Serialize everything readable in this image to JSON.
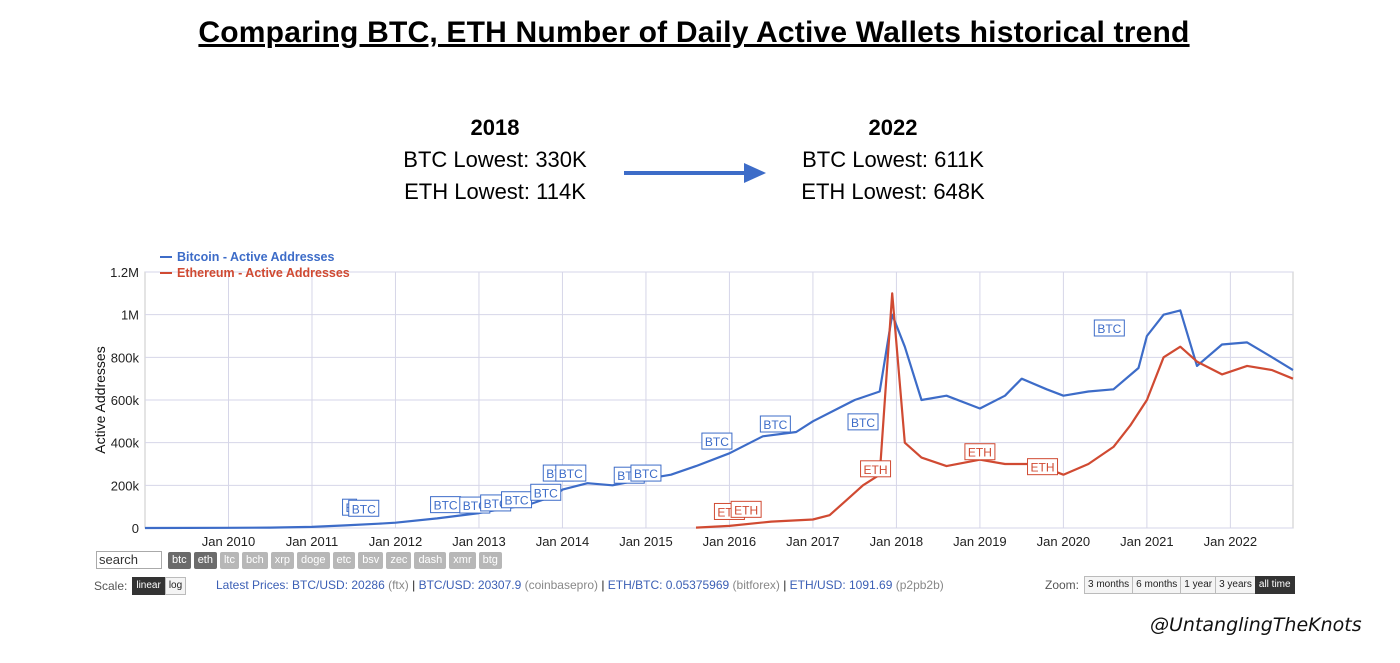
{
  "headline": "Comparing BTC, ETH Number of Daily Active Wallets historical trend",
  "comparison": {
    "left": {
      "year": "2018",
      "btc": "BTC Lowest: 330K",
      "eth": "ETH Lowest: 114K"
    },
    "right": {
      "year": "2022",
      "btc": "BTC Lowest: 611K",
      "eth": "ETH Lowest: 648K"
    }
  },
  "chart_data": {
    "type": "line",
    "ylabel": "Active Addresses",
    "ylim": [
      0,
      1200000
    ],
    "yticks": [
      {
        "value": 0,
        "label": "0"
      },
      {
        "value": 200000,
        "label": "200k"
      },
      {
        "value": 400000,
        "label": "400k"
      },
      {
        "value": 600000,
        "label": "600k"
      },
      {
        "value": 800000,
        "label": "800k"
      },
      {
        "value": 1000000,
        "label": "1M"
      },
      {
        "value": 1200000,
        "label": "1.2M"
      }
    ],
    "xlim": [
      2009.0,
      2022.75
    ],
    "xticks": [
      {
        "value": 2010,
        "label": "Jan 2010"
      },
      {
        "value": 2011,
        "label": "Jan 2011"
      },
      {
        "value": 2012,
        "label": "Jan 2012"
      },
      {
        "value": 2013,
        "label": "Jan 2013"
      },
      {
        "value": 2014,
        "label": "Jan 2014"
      },
      {
        "value": 2015,
        "label": "Jan 2015"
      },
      {
        "value": 2016,
        "label": "Jan 2016"
      },
      {
        "value": 2017,
        "label": "Jan 2017"
      },
      {
        "value": 2018,
        "label": "Jan 2018"
      },
      {
        "value": 2019,
        "label": "Jan 2019"
      },
      {
        "value": 2020,
        "label": "Jan 2020"
      },
      {
        "value": 2021,
        "label": "Jan 2021"
      },
      {
        "value": 2022,
        "label": "Jan 2022"
      }
    ],
    "grid": true,
    "legend_position": "top-left",
    "series": [
      {
        "name": "Bitcoin - Active Addresses",
        "color": "#3d6cc8",
        "x": [
          2009.0,
          2010.0,
          2010.5,
          2011.0,
          2011.4,
          2011.8,
          2012.0,
          2012.5,
          2013.0,
          2013.3,
          2013.6,
          2013.9,
          2014.0,
          2014.3,
          2014.6,
          2015.0,
          2015.3,
          2015.6,
          2016.0,
          2016.4,
          2016.8,
          2017.0,
          2017.3,
          2017.5,
          2017.8,
          2017.95,
          2018.1,
          2018.3,
          2018.6,
          2019.0,
          2019.3,
          2019.5,
          2019.8,
          2020.0,
          2020.3,
          2020.6,
          2020.9,
          2021.0,
          2021.2,
          2021.4,
          2021.6,
          2021.9,
          2022.2,
          2022.5,
          2022.75
        ],
        "y": [
          0,
          1000,
          2000,
          5000,
          12000,
          20000,
          25000,
          45000,
          70000,
          90000,
          110000,
          150000,
          180000,
          210000,
          200000,
          230000,
          250000,
          290000,
          350000,
          430000,
          450000,
          500000,
          560000,
          600000,
          640000,
          1000000,
          850000,
          600000,
          620000,
          560000,
          620000,
          700000,
          650000,
          620000,
          640000,
          650000,
          750000,
          900000,
          1000000,
          1020000,
          760000,
          860000,
          870000,
          800000,
          740000
        ]
      },
      {
        "name": "Ethereum - Active Addresses",
        "color": "#d04a32",
        "x": [
          2015.6,
          2016.0,
          2016.5,
          2017.0,
          2017.2,
          2017.4,
          2017.6,
          2017.8,
          2017.95,
          2018.1,
          2018.3,
          2018.6,
          2019.0,
          2019.3,
          2019.6,
          2019.8,
          2020.0,
          2020.3,
          2020.6,
          2020.8,
          2021.0,
          2021.2,
          2021.4,
          2021.6,
          2021.9,
          2022.2,
          2022.5,
          2022.75
        ],
        "y": [
          2000,
          10000,
          30000,
          40000,
          60000,
          130000,
          200000,
          250000,
          1100000,
          400000,
          330000,
          290000,
          320000,
          300000,
          300000,
          280000,
          250000,
          300000,
          380000,
          480000,
          600000,
          800000,
          850000,
          780000,
          720000,
          760000,
          740000,
          700000
        ]
      }
    ],
    "annotations": [
      {
        "label": "B",
        "x": 2011.45,
        "y": 60000
      },
      {
        "label": "BTC",
        "x": 2011.62,
        "y": 55000
      },
      {
        "label": "BTC",
        "x": 2012.6,
        "y": 72000
      },
      {
        "label": "BTC",
        "x": 2012.95,
        "y": 70000
      },
      {
        "label": "BTC",
        "x": 2013.2,
        "y": 80000
      },
      {
        "label": "BTC",
        "x": 2013.45,
        "y": 95000
      },
      {
        "label": "BTC",
        "x": 2013.8,
        "y": 130000
      },
      {
        "label": "BTC",
        "x": 2013.95,
        "y": 220000
      },
      {
        "label": "BTC",
        "x": 2014.1,
        "y": 220000
      },
      {
        "label": "BTC",
        "x": 2014.8,
        "y": 210000
      },
      {
        "label": "BTC",
        "x": 2015.0,
        "y": 220000
      },
      {
        "label": "BTC",
        "x": 2015.85,
        "y": 370000
      },
      {
        "label": "BTC",
        "x": 2016.55,
        "y": 450000
      },
      {
        "label": "BTC",
        "x": 2017.6,
        "y": 460000
      },
      {
        "label": "BTC",
        "x": 2020.55,
        "y": 900000
      },
      {
        "label": "ETH",
        "x": 2016.0,
        "y": 40000
      },
      {
        "label": "ETH",
        "x": 2016.2,
        "y": 50000
      },
      {
        "label": "ETH",
        "x": 2017.75,
        "y": 240000
      },
      {
        "label": "ETH",
        "x": 2019.0,
        "y": 320000
      },
      {
        "label": "ETH",
        "x": 2019.75,
        "y": 250000
      }
    ]
  },
  "controls": {
    "search_value": "search",
    "coins": [
      "btc",
      "eth",
      "ltc",
      "bch",
      "xrp",
      "doge",
      "etc",
      "bsv",
      "zec",
      "dash",
      "xmr",
      "btg"
    ],
    "coins_active": [
      "btc",
      "eth"
    ],
    "scale_label": "Scale:",
    "scale_options": [
      "linear",
      "log"
    ],
    "scale_active": "linear",
    "zoom_label": "Zoom:",
    "zoom_options": [
      "3 months",
      "6 months",
      "1 year",
      "3 years",
      "all time"
    ],
    "zoom_active": "all time"
  },
  "prices": {
    "label": "Latest Prices:",
    "items": [
      {
        "pair": "BTC/USD: 20286",
        "source": "(ftx)"
      },
      {
        "pair": "BTC/USD: 20307.9",
        "source": "(coinbasepro)"
      },
      {
        "pair": "ETH/BTC: 0.05375969",
        "source": "(bitforex)"
      },
      {
        "pair": "ETH/USD: 1091.69",
        "source": "(p2pb2b)"
      }
    ]
  },
  "watermark": "@UntanglingTheKnots"
}
